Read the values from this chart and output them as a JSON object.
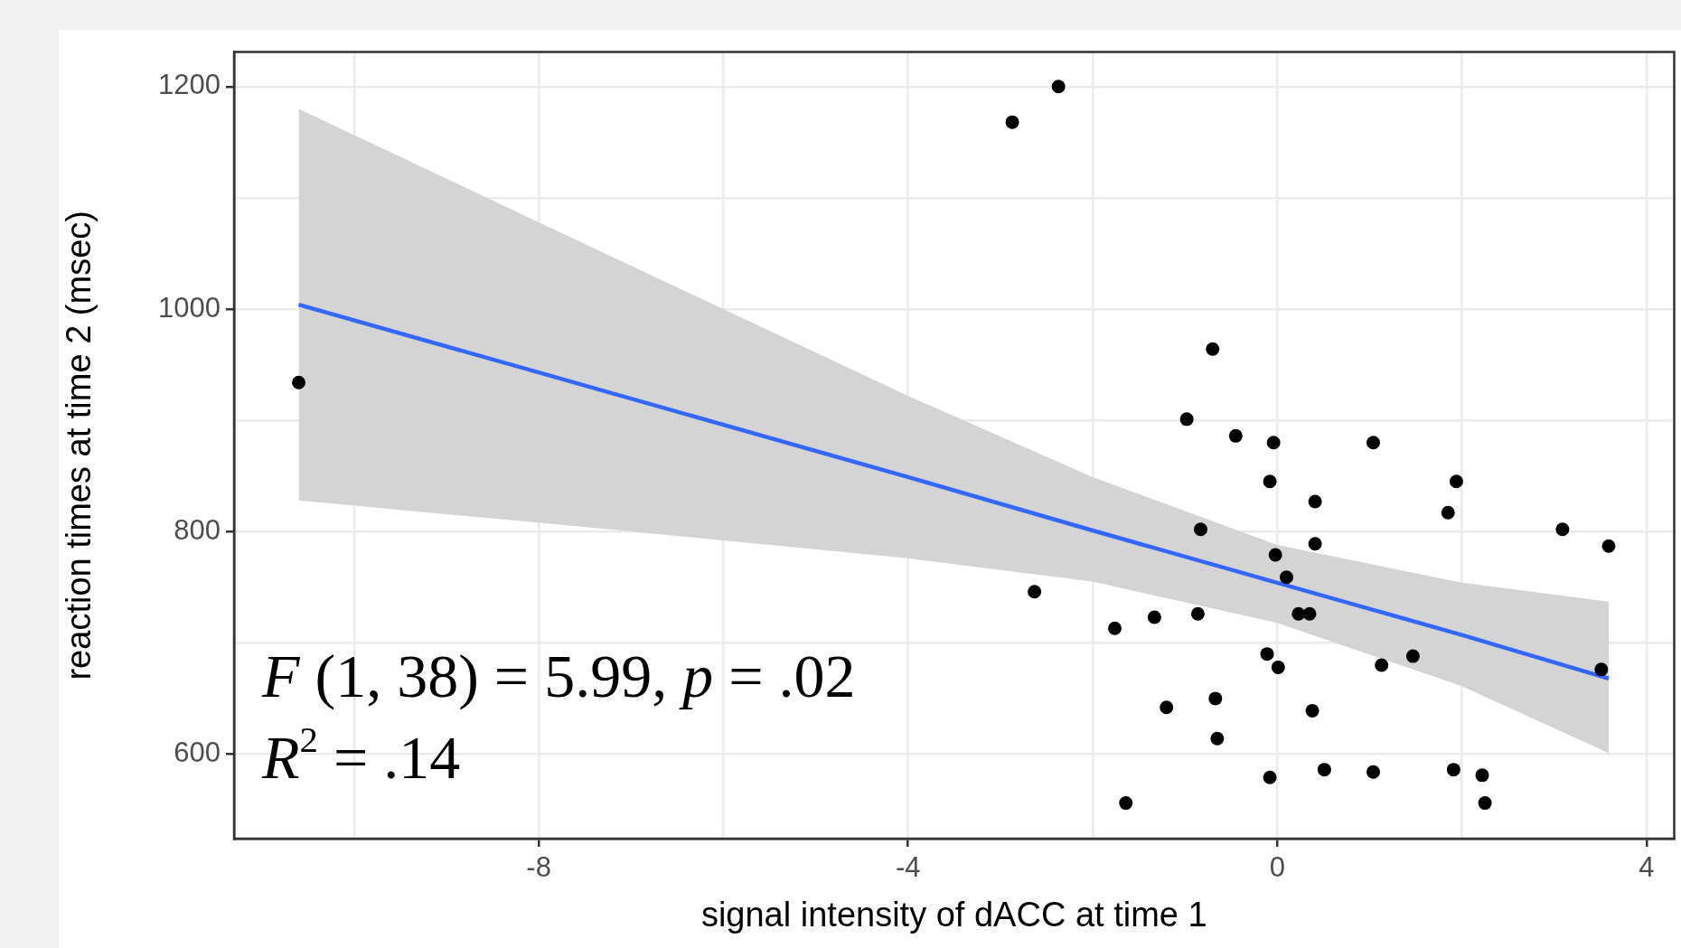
{
  "chart_data": {
    "type": "scatter",
    "xlabel": "signal intensity of dACC at time 1",
    "ylabel": "reaction times at time 2 (msec)",
    "annotations": [
      "F (1, 38) = 5.99, p = .02",
      "R$^{2}$ = .14"
    ],
    "xlim": [
      -11.3,
      4.3
    ],
    "ylim": [
      524,
      1231
    ],
    "xticks": [
      {
        "value": -10,
        "label": null
      },
      -8,
      {
        "value": -6,
        "label": null
      },
      -4,
      {
        "value": -2,
        "label": null
      },
      0,
      {
        "value": 2,
        "label": null
      },
      4
    ],
    "yticks": [
      600,
      {
        "value": 700,
        "label": null
      },
      800,
      {
        "value": 900,
        "label": null
      },
      1000,
      {
        "value": 1100,
        "label": null
      },
      1200
    ],
    "grid": true,
    "series": [
      {
        "color": "#000000",
        "marker": "circle",
        "x": [
          -10.6,
          -2.87,
          -2.63,
          -2.37,
          -1.76,
          -1.64,
          -1.33,
          -1.2,
          -0.98,
          -0.86,
          -0.83,
          -0.7,
          -0.67,
          -0.65,
          -0.45,
          -0.11,
          -0.08,
          -0.08,
          -0.04,
          -0.02,
          0.01,
          0.1,
          0.23,
          0.35,
          0.38,
          0.41,
          0.41,
          0.51,
          1.04,
          1.04,
          1.13,
          1.47,
          1.85,
          1.91,
          1.94,
          2.22,
          2.25,
          3.09,
          3.51,
          3.59
        ],
        "values": [
          934,
          1168,
          746,
          1200,
          713,
          556,
          723,
          642,
          901,
          726,
          802,
          964,
          650,
          614,
          886,
          690,
          845,
          579,
          880,
          779,
          678,
          759,
          726,
          726,
          639,
          827,
          789,
          586,
          880,
          584,
          680,
          688,
          817,
          586,
          845,
          581,
          556,
          802,
          676,
          787
        ]
      },
      {
        "type": "line",
        "marker": "none",
        "color": "#3366ff",
        "x": [
          -10.6,
          -8,
          -4,
          -2,
          0,
          2,
          3.59
        ],
        "values": [
          1004,
          943,
          849,
          801,
          754,
          707,
          668
        ],
        "lower": [
          828,
          808,
          776,
          755,
          718,
          661,
          601
        ],
        "upper": [
          1180,
          1078,
          922,
          849,
          788,
          754,
          737
        ]
      }
    ]
  }
}
